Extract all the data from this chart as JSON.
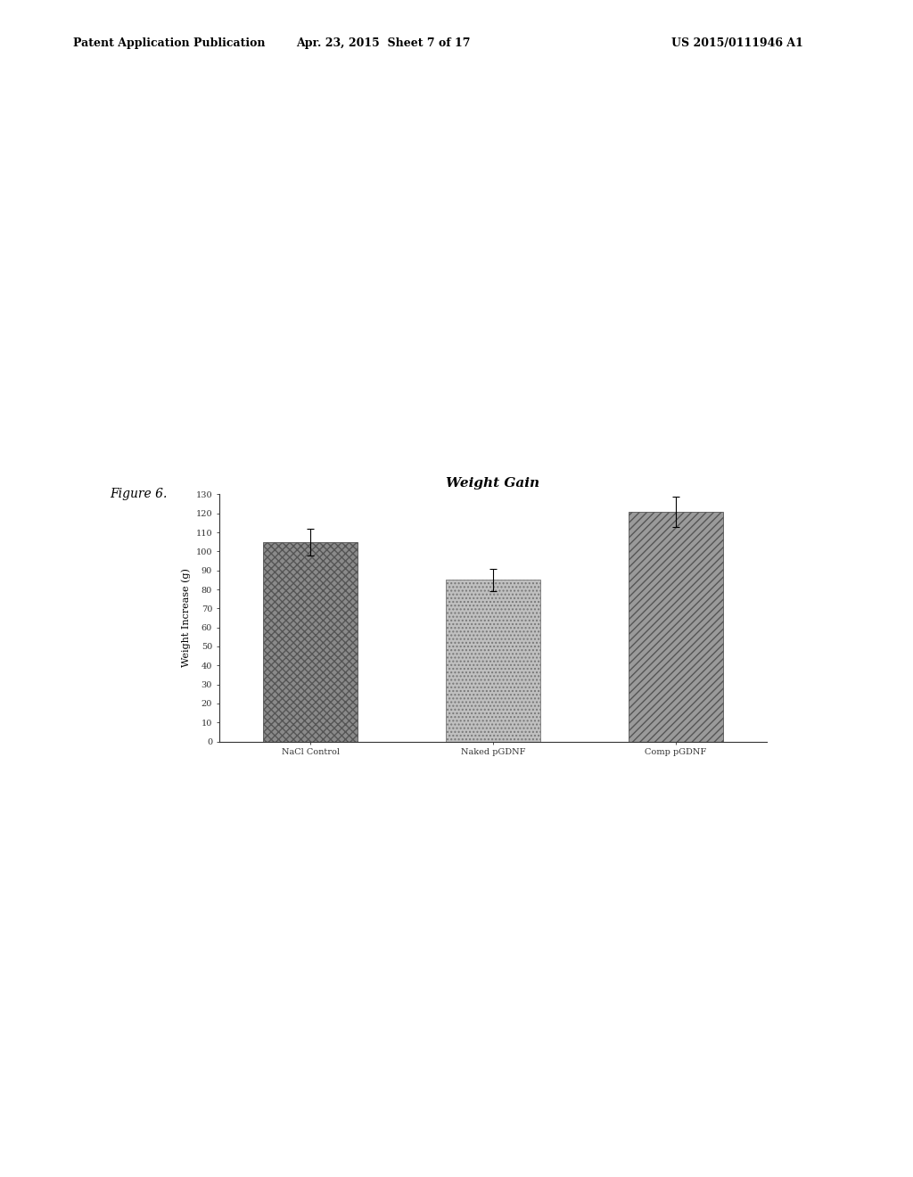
{
  "title": "Weight Gain",
  "ylabel": "Weight Increase (g)",
  "categories": [
    "NaCl Control",
    "Naked pGDNF",
    "Comp pGDNF"
  ],
  "values": [
    105,
    85,
    121
  ],
  "errors": [
    7,
    6,
    8
  ],
  "ylim": [
    0,
    130
  ],
  "yticks": [
    0,
    10,
    20,
    30,
    40,
    50,
    60,
    70,
    80,
    90,
    100,
    110,
    120,
    130
  ],
  "bar_colors": [
    "#8a8a8a",
    "#c0c0c0",
    "#9a9a9a"
  ],
  "figure_label": "Figure 6.",
  "background_color": "#ffffff",
  "title_fontsize": 11,
  "label_fontsize": 8,
  "tick_fontsize": 7,
  "header_left": "Patent Application Publication",
  "header_mid": "Apr. 23, 2015  Sheet 7 of 17",
  "header_right": "US 2015/0111946 A1"
}
